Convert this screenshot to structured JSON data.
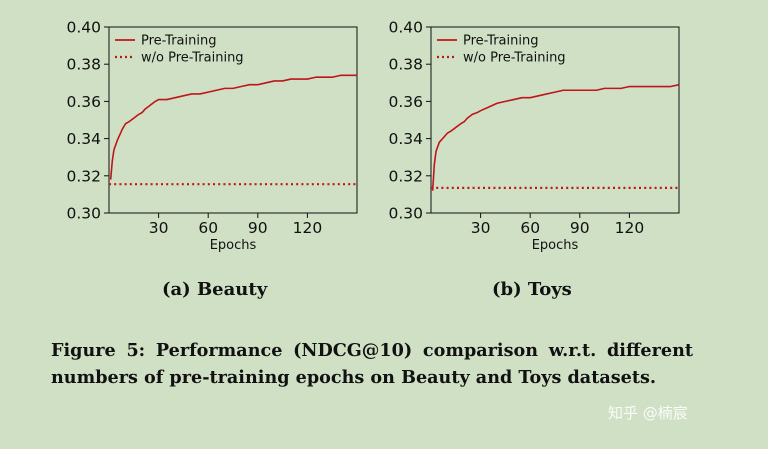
{
  "chart_data": [
    {
      "type": "line",
      "title": "",
      "xlabel": "Epochs",
      "ylabel": "",
      "xlim": [
        0,
        150
      ],
      "ylim": [
        0.3,
        0.4
      ],
      "xticks": [
        30,
        60,
        90,
        120
      ],
      "yticks": [
        0.3,
        0.32,
        0.34,
        0.36,
        0.38,
        0.4
      ],
      "ytick_labels": [
        "0.30",
        "0.32",
        "0.34",
        "0.36",
        "0.38",
        "0.40"
      ],
      "xtick_labels": [
        "30",
        "60",
        "90",
        "120"
      ],
      "grid": false,
      "legend_position": "top-left",
      "series": [
        {
          "name": "Pre-Training",
          "color": "#c0141c",
          "style": "solid",
          "x": [
            1,
            2,
            3,
            5,
            8,
            10,
            12,
            15,
            18,
            20,
            22,
            25,
            28,
            30,
            35,
            40,
            45,
            50,
            55,
            60,
            65,
            70,
            75,
            80,
            85,
            90,
            95,
            100,
            105,
            110,
            115,
            120,
            125,
            130,
            135,
            140,
            145,
            150
          ],
          "y": [
            0.318,
            0.328,
            0.334,
            0.339,
            0.345,
            0.348,
            0.349,
            0.351,
            0.353,
            0.354,
            0.356,
            0.358,
            0.36,
            0.361,
            0.361,
            0.362,
            0.363,
            0.364,
            0.364,
            0.365,
            0.366,
            0.367,
            0.367,
            0.368,
            0.369,
            0.369,
            0.37,
            0.371,
            0.371,
            0.372,
            0.372,
            0.372,
            0.373,
            0.373,
            0.373,
            0.374,
            0.374,
            0.374
          ]
        },
        {
          "name": "w/o Pre-Training",
          "color": "#c0141c",
          "style": "dotted",
          "x": [
            0,
            150
          ],
          "y": [
            0.3155,
            0.3155
          ]
        }
      ]
    },
    {
      "type": "line",
      "title": "",
      "xlabel": "Epochs",
      "ylabel": "",
      "xlim": [
        0,
        150
      ],
      "ylim": [
        0.3,
        0.4
      ],
      "xticks": [
        30,
        60,
        90,
        120
      ],
      "yticks": [
        0.3,
        0.32,
        0.34,
        0.36,
        0.38,
        0.4
      ],
      "ytick_labels": [
        "0.30",
        "0.32",
        "0.34",
        "0.36",
        "0.38",
        "0.40"
      ],
      "xtick_labels": [
        "30",
        "60",
        "90",
        "120"
      ],
      "grid": false,
      "legend_position": "top-left",
      "series": [
        {
          "name": "Pre-Training",
          "color": "#c0141c",
          "style": "solid",
          "x": [
            1,
            2,
            3,
            5,
            8,
            10,
            12,
            15,
            18,
            20,
            22,
            25,
            28,
            30,
            35,
            40,
            45,
            50,
            55,
            60,
            65,
            70,
            75,
            80,
            85,
            90,
            95,
            100,
            105,
            110,
            115,
            120,
            125,
            130,
            135,
            140,
            145,
            150
          ],
          "y": [
            0.312,
            0.326,
            0.333,
            0.338,
            0.341,
            0.343,
            0.344,
            0.346,
            0.348,
            0.349,
            0.351,
            0.353,
            0.354,
            0.355,
            0.357,
            0.359,
            0.36,
            0.361,
            0.362,
            0.362,
            0.363,
            0.364,
            0.365,
            0.366,
            0.366,
            0.366,
            0.366,
            0.366,
            0.367,
            0.367,
            0.367,
            0.368,
            0.368,
            0.368,
            0.368,
            0.368,
            0.368,
            0.369
          ]
        },
        {
          "name": "w/o Pre-Training",
          "color": "#c0141c",
          "style": "dotted",
          "x": [
            0,
            150
          ],
          "y": [
            0.3135,
            0.3135
          ]
        }
      ]
    }
  ],
  "subcaptions": [
    "(a) Beauty",
    "(b) Toys"
  ],
  "caption": "Figure 5: Performance (NDCG@10) comparison w.r.t. different numbers of pre-training epochs on Beauty and Toys datasets.",
  "watermark": "知乎 @楠宸"
}
